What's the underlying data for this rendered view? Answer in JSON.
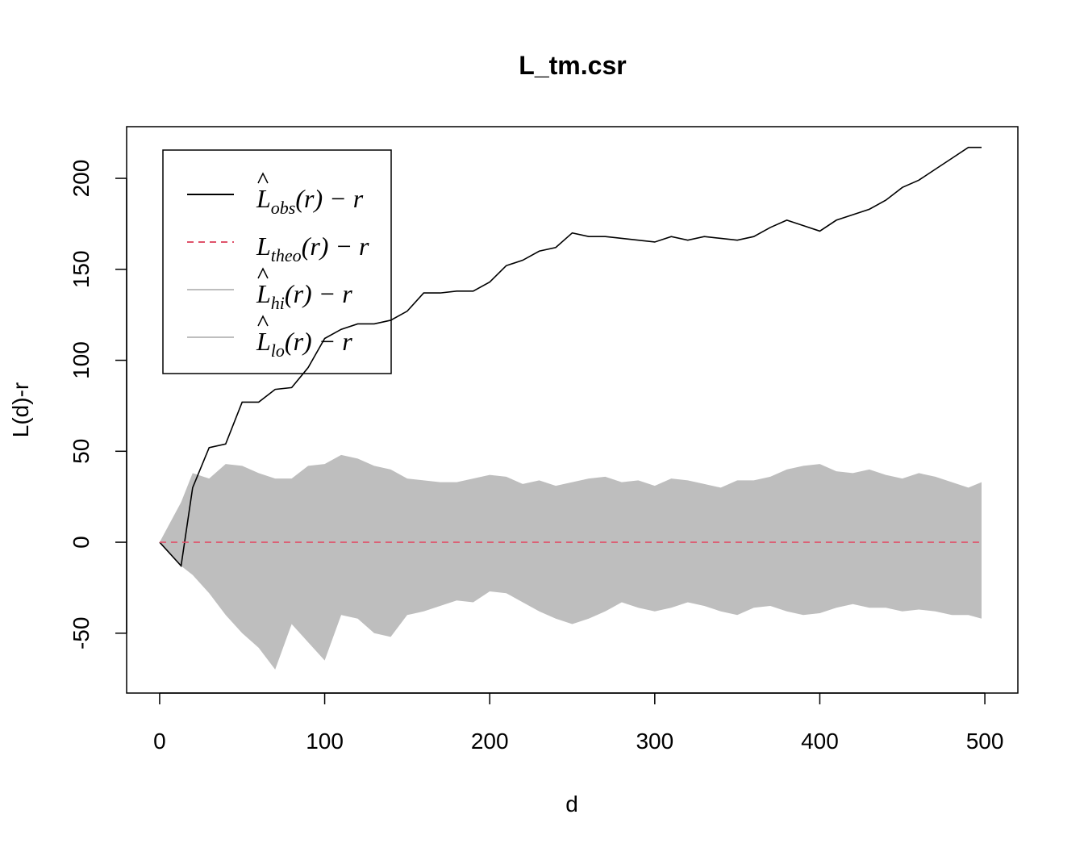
{
  "chart_data": {
    "type": "envelope",
    "title": "L_tm.csr",
    "x_label": "d",
    "y_label": "L(d)-r",
    "xlim": [
      -20,
      520
    ],
    "ylim": [
      -82.9,
      228.4
    ],
    "xticks": [
      0,
      100,
      200,
      300,
      400,
      500
    ],
    "yticks": [
      -50,
      0,
      50,
      100,
      150,
      200
    ],
    "legend_position": "top-left",
    "x": [
      0,
      13,
      20,
      30,
      40,
      50,
      60,
      70,
      80,
      90,
      100,
      110,
      120,
      130,
      140,
      150,
      160,
      170,
      180,
      190,
      200,
      210,
      220,
      230,
      240,
      250,
      260,
      270,
      280,
      290,
      300,
      310,
      320,
      330,
      340,
      350,
      360,
      370,
      380,
      390,
      400,
      410,
      420,
      430,
      440,
      450,
      460,
      470,
      480,
      490,
      498
    ],
    "series": [
      {
        "name": {
          "symbol": "L",
          "subscript": "obs",
          "suffix": "(r) − r"
        },
        "hat": true,
        "color": "#000000",
        "style": "solid",
        "role": "line",
        "values": [
          0,
          -13,
          30,
          52,
          54,
          77,
          77,
          84,
          85,
          96,
          112,
          117,
          120,
          120,
          122,
          127,
          137,
          137,
          138,
          138,
          143,
          152,
          155,
          160,
          162,
          170,
          168,
          168,
          167,
          166,
          165,
          168,
          166,
          168,
          167,
          166,
          168,
          173,
          177,
          174,
          171,
          177,
          180,
          183,
          188,
          195,
          199,
          205,
          211,
          217,
          217
        ]
      },
      {
        "name": {
          "symbol": "L",
          "subscript": "theo",
          "suffix": "(r) − r"
        },
        "hat": false,
        "color": "#DF536B",
        "style": "dashed",
        "role": "line",
        "values": [
          0,
          0,
          0,
          0,
          0,
          0,
          0,
          0,
          0,
          0,
          0,
          0,
          0,
          0,
          0,
          0,
          0,
          0,
          0,
          0,
          0,
          0,
          0,
          0,
          0,
          0,
          0,
          0,
          0,
          0,
          0,
          0,
          0,
          0,
          0,
          0,
          0,
          0,
          0,
          0,
          0,
          0,
          0,
          0,
          0,
          0,
          0,
          0,
          0,
          0,
          0
        ]
      },
      {
        "name": {
          "symbol": "L",
          "subscript": "hi",
          "suffix": "(r) − r"
        },
        "hat": true,
        "color": "#BEBEBE",
        "style": "solid",
        "role": "band",
        "values": [
          0,
          22,
          38,
          35,
          43,
          42,
          38,
          35,
          35,
          42,
          43,
          48,
          46,
          42,
          40,
          35,
          34,
          33,
          33,
          35,
          37,
          36,
          32,
          34,
          31,
          33,
          35,
          36,
          33,
          34,
          31,
          35,
          34,
          32,
          30,
          34,
          34,
          36,
          40,
          42,
          43,
          39,
          38,
          40,
          37,
          35,
          38,
          36,
          33,
          30,
          33
        ]
      },
      {
        "name": {
          "symbol": "L",
          "subscript": "lo",
          "suffix": "(r) − r"
        },
        "hat": true,
        "color": "#BEBEBE",
        "style": "solid",
        "role": "band",
        "values": [
          0,
          -13,
          -18,
          -28,
          -40,
          -50,
          -58,
          -70,
          -45,
          -55,
          -65,
          -40,
          -42,
          -50,
          -52,
          -40,
          -38,
          -35,
          -32,
          -33,
          -27,
          -28,
          -33,
          -38,
          -42,
          -45,
          -42,
          -38,
          -33,
          -36,
          -38,
          -36,
          -33,
          -35,
          -38,
          -40,
          -36,
          -35,
          -38,
          -40,
          -39,
          -36,
          -34,
          -36,
          -36,
          -38,
          -37,
          -38,
          -40,
          -40,
          -42
        ]
      }
    ]
  }
}
